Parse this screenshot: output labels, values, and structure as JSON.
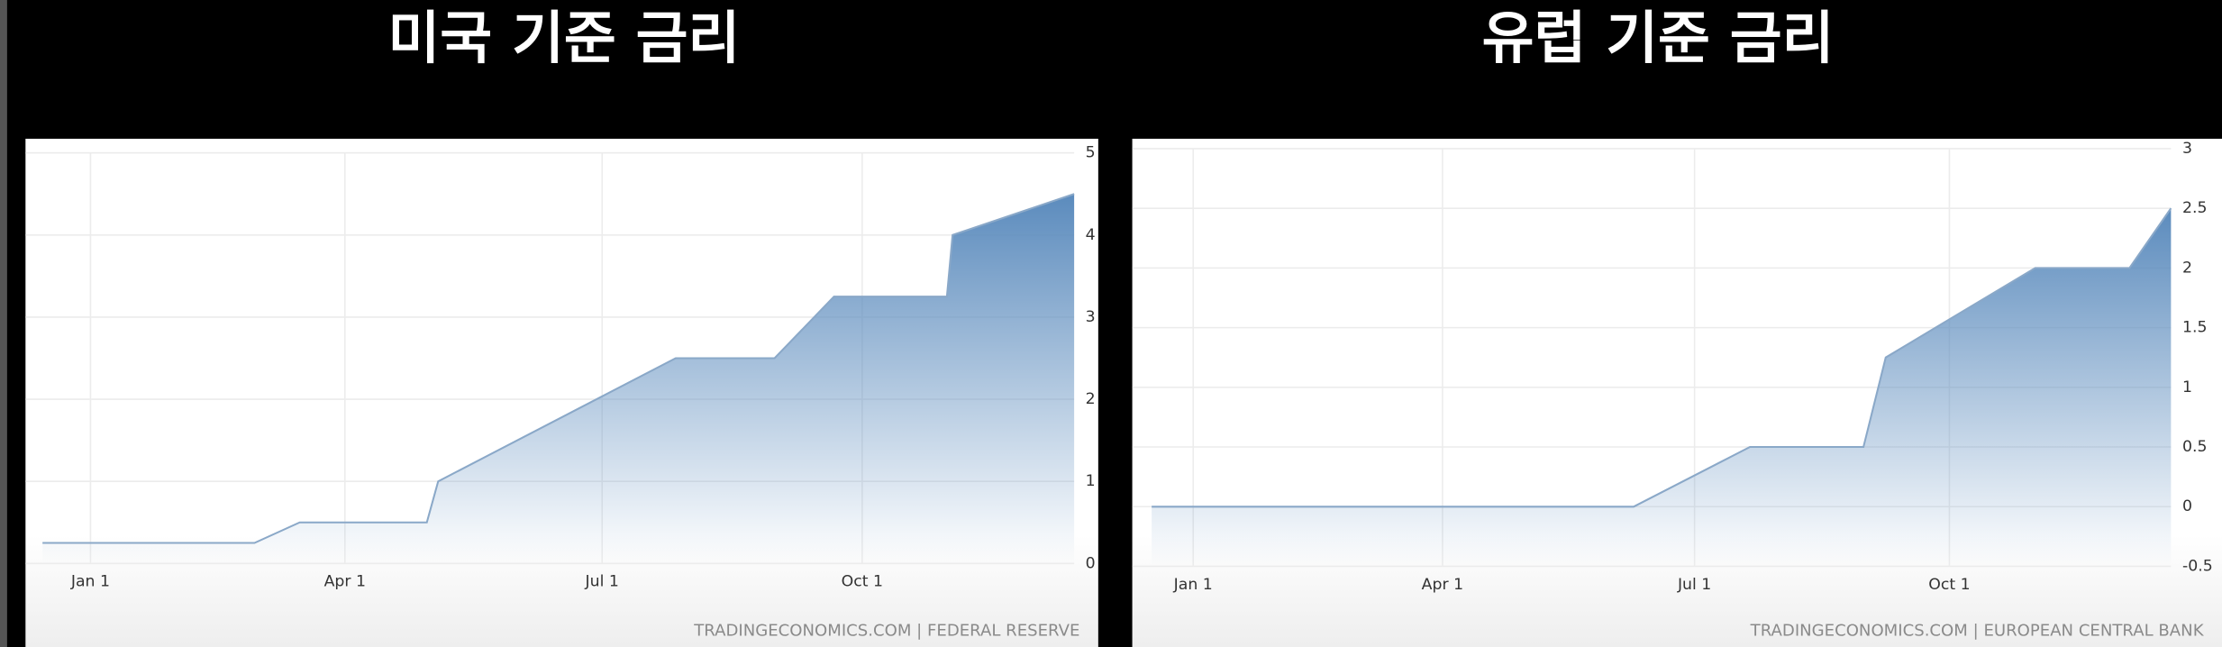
{
  "chart_data": [
    {
      "type": "area",
      "title": "미국 기준 금리",
      "source": "TRADINGECONOMICS.COM | FEDERAL RESERVE",
      "color": "#5b8bbd",
      "grid": true,
      "x": [
        "Dec 15",
        "Feb 28",
        "Mar 16",
        "Apr 30",
        "May 4",
        "Jul 27",
        "Aug 31",
        "Sep 21",
        "Oct 31",
        "Nov 2",
        "Dec 15"
      ],
      "values": [
        0.25,
        0.25,
        0.5,
        0.5,
        1.0,
        2.5,
        2.5,
        3.25,
        3.25,
        4.0,
        4.5
      ],
      "xlim": [
        "Dec 9",
        "Dec 15"
      ],
      "xticks": [
        "Jan 1",
        "Apr 1",
        "Jul 1",
        "Oct 1"
      ],
      "ylim": [
        0,
        5
      ],
      "yticks": [
        0,
        1,
        2,
        3,
        4,
        5
      ]
    },
    {
      "type": "area",
      "title": "유럽 기준 금리",
      "source": "TRADINGECONOMICS.COM | EUROPEAN CENTRAL BANK",
      "color": "#5b8bbd",
      "grid": true,
      "x": [
        "Dec 17",
        "Jun 9",
        "Jul 21",
        "Aug 31",
        "Sep 8",
        "Nov 1",
        "Dec 5",
        "Dec 20"
      ],
      "values": [
        0,
        0,
        0.5,
        0.5,
        1.25,
        2.0,
        2.0,
        2.5
      ],
      "xlim": [
        "Dec 10",
        "Dec 20"
      ],
      "xticks": [
        "Jan 1",
        "Apr 1",
        "Jul 1",
        "Oct 1"
      ],
      "ylim": [
        -0.5,
        3
      ],
      "yticks": [
        -0.5,
        0,
        0.5,
        1,
        1.5,
        2,
        2.5,
        3
      ]
    }
  ]
}
